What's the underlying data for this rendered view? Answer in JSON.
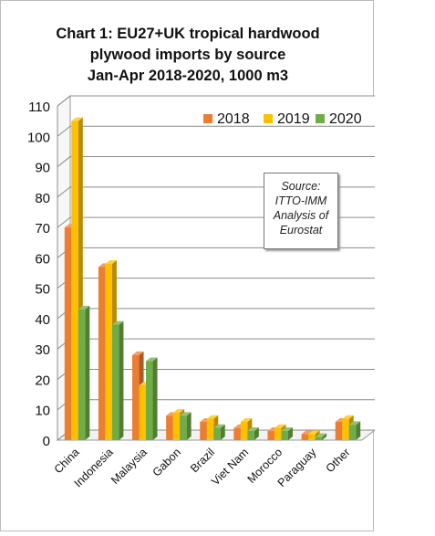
{
  "chart_data": {
    "type": "bar",
    "title": [
      "Chart 1: EU27+UK tropical  hardwood",
      "plywood imports by source",
      "Jan-Apr  2018-2020, 1000 m3"
    ],
    "categories": [
      "China",
      "Indonesia",
      "Malaysia",
      "Gabon",
      "Brazil",
      "Viet Nam",
      "Morocco",
      "Paraguay",
      "Other"
    ],
    "series": [
      {
        "name": "2018",
        "color": "#ED7D31",
        "values": [
          70,
          57,
          28,
          8,
          6,
          4,
          3,
          2,
          6
        ]
      },
      {
        "name": "2019",
        "color": "#FFC000",
        "values": [
          105,
          58,
          18,
          9,
          7,
          6,
          4,
          2,
          7
        ]
      },
      {
        "name": "2020",
        "color": "#70AD47",
        "values": [
          43,
          38,
          26,
          8,
          4,
          3,
          3,
          1,
          5
        ]
      }
    ],
    "ylim": [
      0,
      110
    ],
    "yticks": [
      0,
      10,
      20,
      30,
      40,
      50,
      60,
      70,
      80,
      90,
      100,
      110
    ],
    "grid": true,
    "legend_position": "top-right",
    "annotation": [
      "Source:",
      "ITTO-IMM",
      "Analysis of",
      "Eurostat"
    ]
  }
}
